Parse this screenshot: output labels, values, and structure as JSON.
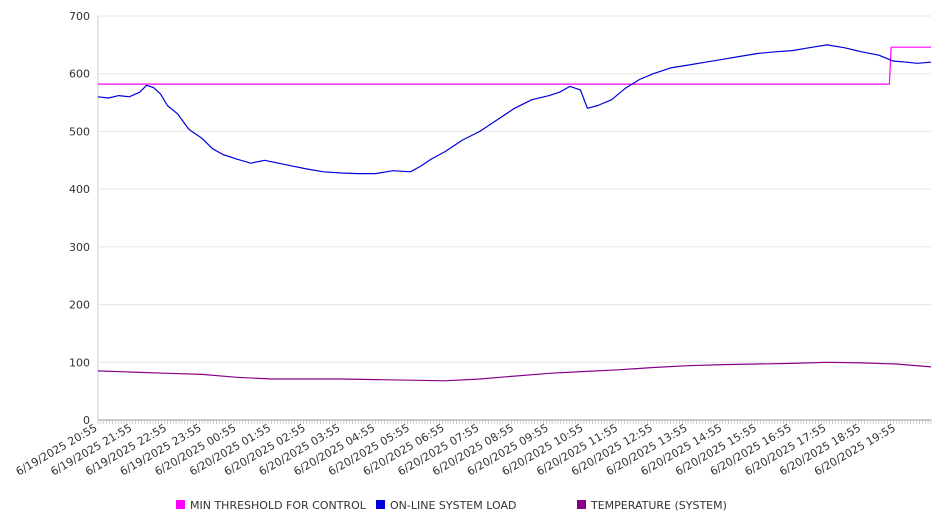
{
  "chart_data": {
    "type": "line",
    "title": "",
    "xlabel": "",
    "ylabel": "",
    "ylim": [
      0,
      700
    ],
    "yticks": [
      0,
      100,
      200,
      300,
      400,
      500,
      600,
      700
    ],
    "grid": true,
    "legend_position": "bottom",
    "categories": [
      "6/19/2025 20:55",
      "6/19/2025 21:55",
      "6/19/2025 22:55",
      "6/19/2025 23:55",
      "6/20/2025 00:55",
      "6/20/2025 01:55",
      "6/20/2025 02:55",
      "6/20/2025 03:55",
      "6/20/2025 04:55",
      "6/20/2025 05:55",
      "6/20/2025 06:55",
      "6/20/2025 07:55",
      "6/20/2025 08:55",
      "6/20/2025 09:55",
      "6/20/2025 10:55",
      "6/20/2025 11:55",
      "6/20/2025 12:55",
      "6/20/2025 13:55",
      "6/20/2025 14:55",
      "6/20/2025 15:55",
      "6/20/2025 16:55",
      "6/20/2025 17:55",
      "6/20/2025 18:55",
      "6/20/2025 19:55"
    ],
    "series": [
      {
        "name": "MIN THRESHOLD FOR CONTROL",
        "color": "#ff00ff",
        "x": [
          0,
          22.8,
          22.85,
          24
        ],
        "values": [
          582,
          582,
          646,
          646
        ]
      },
      {
        "name": "ON-LINE SYSTEM LOAD",
        "color": "#0000dd",
        "x": [
          0,
          0.3,
          0.6,
          0.9,
          1.2,
          1.4,
          1.6,
          1.8,
          2.0,
          2.3,
          2.6,
          2.7,
          3.0,
          3.3,
          3.6,
          4.0,
          4.4,
          4.8,
          5.2,
          5.6,
          6.0,
          6.5,
          7.0,
          7.5,
          8.0,
          8.5,
          9.0,
          9.3,
          9.6,
          10.0,
          10.5,
          11.0,
          11.5,
          12.0,
          12.5,
          13.0,
          13.3,
          13.6,
          13.9,
          14.1,
          14.4,
          14.8,
          15.2,
          15.6,
          16.0,
          16.5,
          17.0,
          17.5,
          18.0,
          18.5,
          19.0,
          19.5,
          20.0,
          20.5,
          21.0,
          21.5,
          22.0,
          22.5,
          22.9,
          23.3,
          23.6,
          24
        ],
        "values": [
          560,
          558,
          562,
          560,
          568,
          580,
          576,
          565,
          545,
          530,
          505,
          500,
          488,
          470,
          460,
          452,
          445,
          450,
          445,
          440,
          435,
          430,
          428,
          427,
          427,
          432,
          430,
          440,
          452,
          465,
          485,
          500,
          520,
          540,
          555,
          562,
          568,
          578,
          572,
          540,
          545,
          555,
          575,
          590,
          600,
          610,
          615,
          620,
          625,
          630,
          635,
          638,
          640,
          645,
          650,
          645,
          638,
          632,
          622,
          620,
          618,
          620
        ]
      },
      {
        "name": "TEMPERATURE (SYSTEM)",
        "color": "#880088",
        "x": [
          0,
          1,
          2,
          3,
          4,
          5,
          6,
          7,
          8,
          9,
          10,
          11,
          12,
          13,
          14,
          15,
          16,
          17,
          18,
          19,
          20,
          21,
          22,
          23,
          24
        ],
        "values": [
          85,
          83,
          81,
          79,
          74,
          71,
          71,
          71,
          70,
          69,
          68,
          71,
          76,
          81,
          84,
          87,
          91,
          94,
          96,
          97,
          98,
          100,
          99,
          97,
          92
        ]
      }
    ]
  }
}
